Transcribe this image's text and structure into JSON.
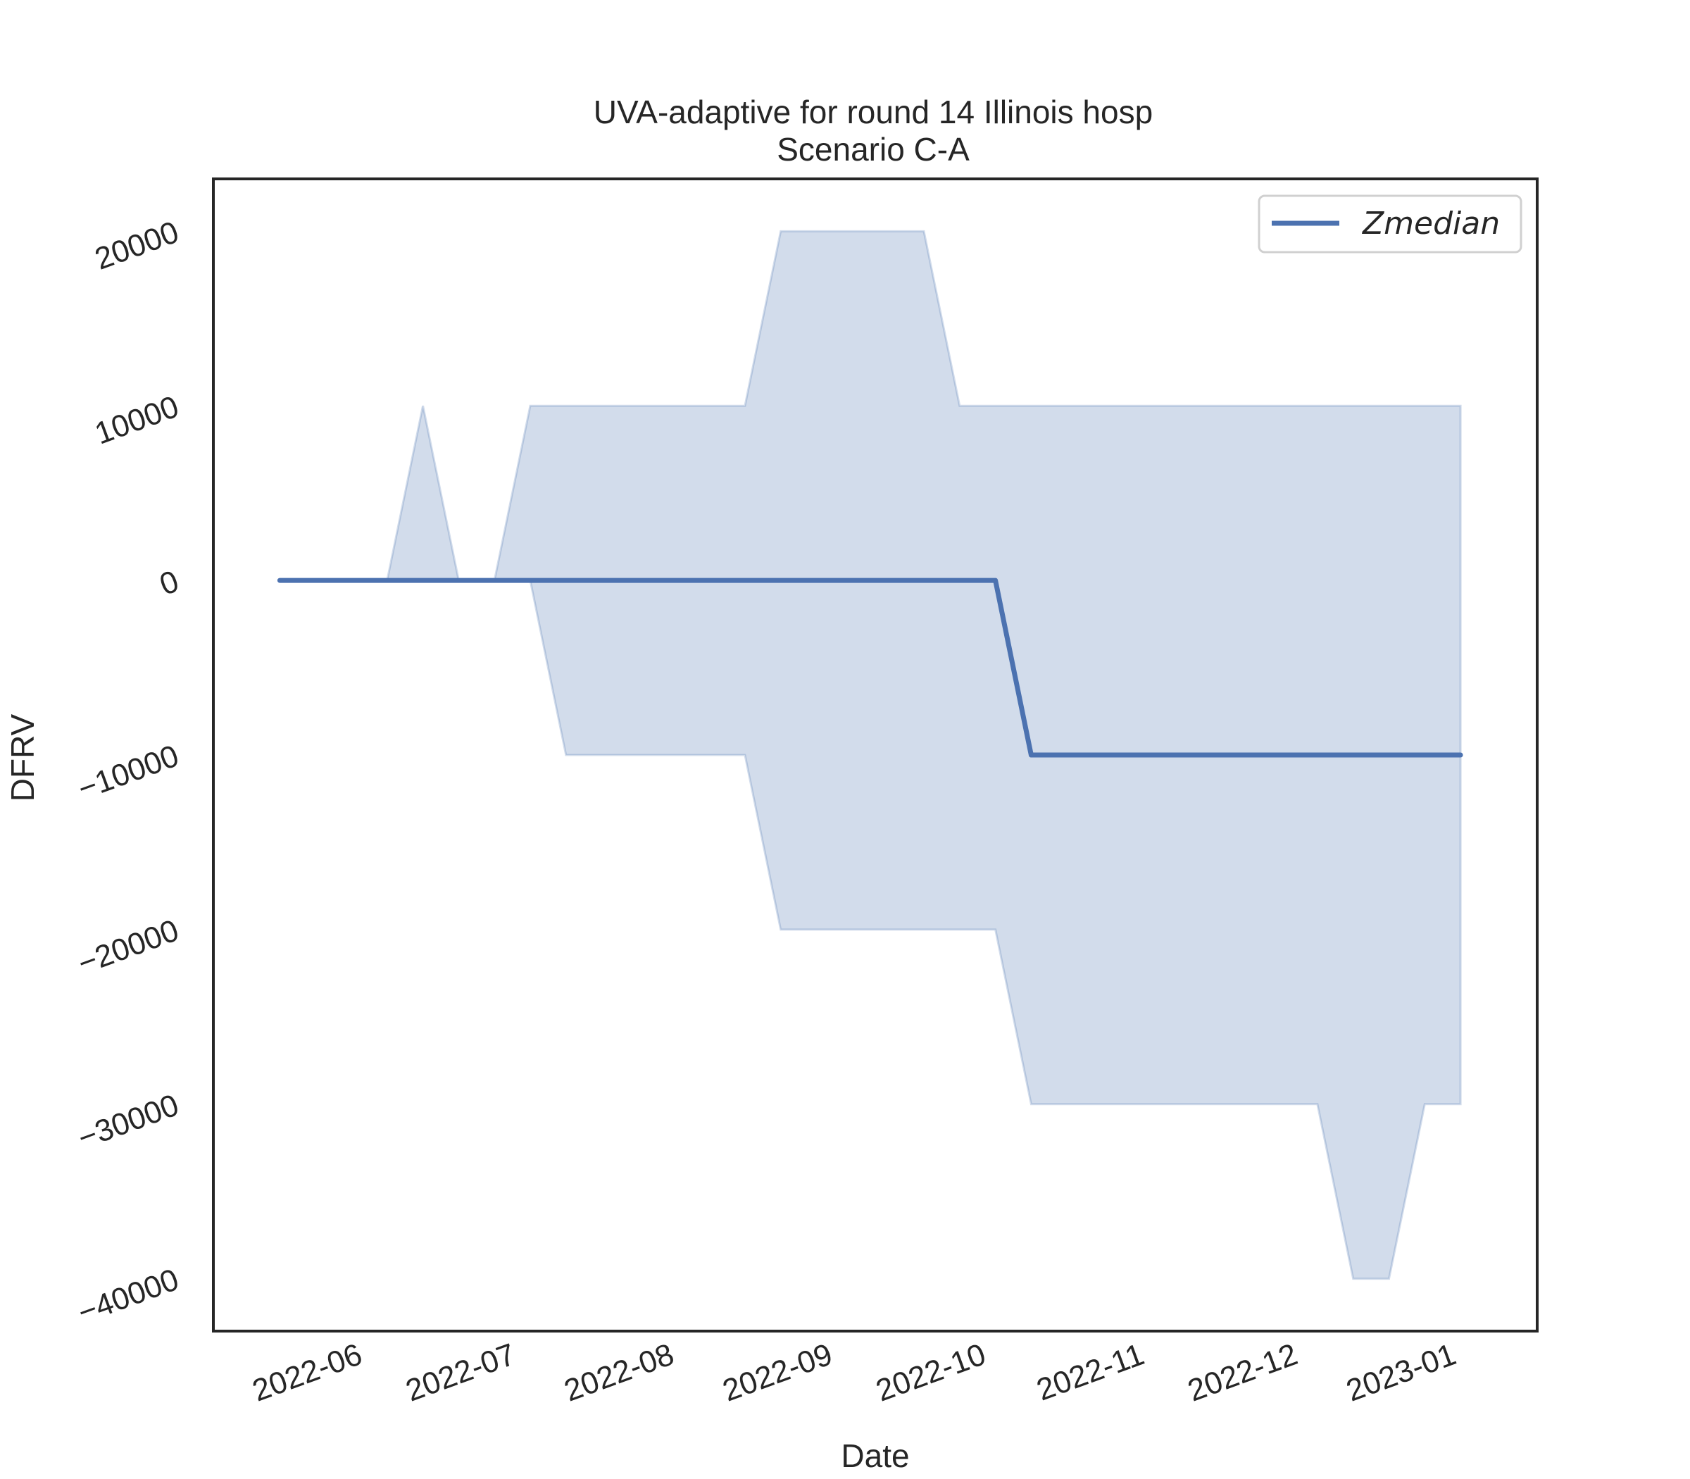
{
  "chart_data": {
    "type": "line",
    "title": "UVA-adaptive for round 14 Illinois hosp",
    "subtitle": "Scenario C-A",
    "xlabel": "Date",
    "ylabel": "DFRV",
    "x_ticks": [
      "2022-06",
      "2022-07",
      "2022-08",
      "2022-09",
      "2022-10",
      "2022-11",
      "2022-12",
      "2023-01"
    ],
    "y_ticks": [
      20000,
      10000,
      0,
      -10000,
      -20000,
      -30000,
      -40000
    ],
    "y_tick_labels": [
      "20000",
      "10000",
      "0",
      "−10000",
      "−20000",
      "−30000",
      "−40000"
    ],
    "xlim": [
      "2022-05-08",
      "2023-01-22"
    ],
    "ylim": [
      -43000,
      23000
    ],
    "grid": false,
    "legend_position": "top-right",
    "line_color": "#4c72b0",
    "band_color": "#4c72b0",
    "series": [
      {
        "name": "Zmedian",
        "x": [
          "2022-05-21",
          "2022-06-11",
          "2022-06-18",
          "2022-06-25",
          "2022-07-02",
          "2022-07-09",
          "2022-07-16",
          "2022-07-23",
          "2022-08-20",
          "2022-08-27",
          "2022-09-24",
          "2022-10-01",
          "2022-10-08",
          "2022-10-15",
          "2022-12-10",
          "2022-12-17",
          "2022-12-24",
          "2022-12-31",
          "2023-01-07"
        ],
        "values": [
          0,
          0,
          0,
          0,
          0,
          0,
          0,
          0,
          0,
          0,
          0,
          0,
          0,
          -10000,
          -10000,
          -10000,
          -10000,
          -10000,
          -10000
        ]
      }
    ],
    "band": {
      "x": [
        "2022-05-21",
        "2022-06-11",
        "2022-06-18",
        "2022-06-25",
        "2022-07-02",
        "2022-07-09",
        "2022-07-16",
        "2022-07-23",
        "2022-08-20",
        "2022-08-27",
        "2022-09-24",
        "2022-10-01",
        "2022-10-08",
        "2022-10-15",
        "2022-12-10",
        "2022-12-17",
        "2022-12-24",
        "2022-12-31",
        "2023-01-07"
      ],
      "upper": [
        0,
        0,
        10000,
        0,
        0,
        10000,
        10000,
        10000,
        10000,
        20000,
        20000,
        10000,
        10000,
        10000,
        10000,
        10000,
        10000,
        10000,
        10000
      ],
      "lower": [
        0,
        0,
        0,
        0,
        0,
        0,
        -10000,
        -10000,
        -10000,
        -20000,
        -20000,
        -20000,
        -20000,
        -30000,
        -30000,
        -40000,
        -40000,
        -30000,
        -30000
      ]
    }
  }
}
